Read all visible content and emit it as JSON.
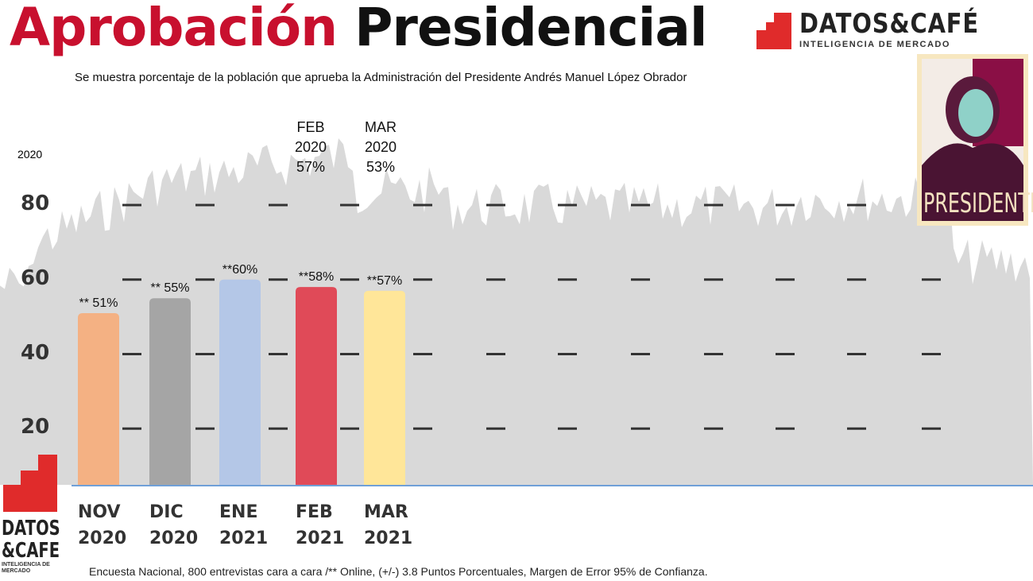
{
  "header": {
    "title_part1": "Aprobación",
    "title_part2": "Presidencial",
    "subtitle": "Se muestra porcentaje de la población que aprueba la Administración del Presidente Andrés Manuel López Obrador"
  },
  "logo": {
    "brand": "DATOS&CAFÉ",
    "tagline": "INTELIGENCIA DE MERCADO",
    "side_brand_1": "DATOS",
    "side_brand_2": "&CAFE",
    "side_tagline": "INTELIGENCIA DE MERCADO"
  },
  "poster": {
    "caption": "PRESIDENTE"
  },
  "annotations": {
    "left_year": "2020",
    "feb": [
      "FEB",
      "2020",
      "57%"
    ],
    "mar": [
      "MAR",
      "2020",
      "53%"
    ]
  },
  "footer": "Encuesta Nacional, 800 entrevistas cara a cara /** Online, (+/-) 3.8 Puntos Porcentuales, Margen de Error 95% de Confianza.",
  "chart_data": {
    "type": "bar",
    "title": "Aprobación Presidencial",
    "categories": [
      [
        "NOV",
        "2020"
      ],
      [
        "DIC",
        "2020"
      ],
      [
        "ENE",
        "2021"
      ],
      [
        "FEB",
        "2021"
      ],
      [
        "MAR",
        "2021"
      ]
    ],
    "values": [
      51,
      55,
      60,
      58,
      57
    ],
    "data_labels": [
      "** 51%",
      "** 55%",
      "**60%",
      "**58%",
      "**57%"
    ],
    "colors": [
      "#f4b183",
      "#a5a5a5",
      "#b4c7e7",
      "#e04a58",
      "#ffe699"
    ],
    "yticks": [
      20,
      40,
      60,
      80
    ],
    "ylim": [
      0,
      80
    ],
    "grid": "dashes"
  }
}
